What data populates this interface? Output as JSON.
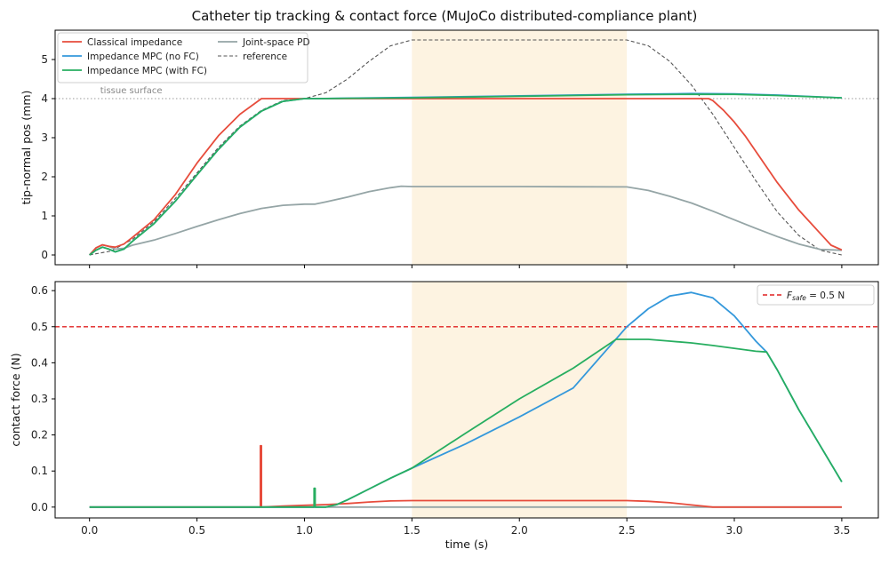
{
  "figure": {
    "title": "Catheter tip tracking & contact force (MuJoCo distributed-compliance plant)"
  },
  "colors": {
    "classical": "#e74c3c",
    "mpc_nofc": "#3498db",
    "mpc_fc": "#27ae60",
    "pd": "#95a5a6",
    "reference": "#555555",
    "fsafe": "#e02020",
    "shade": "#fdf3e1"
  },
  "chart_data": [
    {
      "type": "line",
      "id": "top",
      "ylabel": "tip-normal pos (mm)",
      "xlim": [
        -0.16,
        3.67
      ],
      "ylim": [
        -0.25,
        5.75
      ],
      "xticks": [
        0.0,
        0.5,
        1.0,
        1.5,
        2.0,
        2.5,
        3.0,
        3.5
      ],
      "xtick_labels_visible": false,
      "yticks": [
        0,
        1,
        2,
        3,
        4,
        5
      ],
      "shaded_x": [
        1.5,
        2.5
      ],
      "hline": {
        "y": 4.0,
        "label": "tissue surface",
        "label_x": 0.05
      },
      "legend": [
        "Classical impedance",
        "Impedance MPC (no FC)",
        "Impedance MPC (with FC)",
        "Joint-space PD",
        "reference"
      ],
      "series": [
        {
          "name": "reference",
          "color_key": "reference",
          "dashed": true,
          "width": 1.1,
          "x": [
            0,
            0.1,
            0.2,
            0.3,
            0.4,
            0.5,
            0.6,
            0.7,
            0.8,
            0.9,
            1.0,
            1.1,
            1.2,
            1.3,
            1.4,
            1.5,
            2.5,
            2.6,
            2.7,
            2.8,
            2.9,
            3.0,
            3.1,
            3.2,
            3.3,
            3.4,
            3.5
          ],
          "y": [
            0,
            0.1,
            0.4,
            0.85,
            1.45,
            2.1,
            2.75,
            3.3,
            3.7,
            3.95,
            4.0,
            4.15,
            4.5,
            4.95,
            5.35,
            5.5,
            5.5,
            5.35,
            4.95,
            4.35,
            3.6,
            2.75,
            1.9,
            1.1,
            0.5,
            0.12,
            0.0
          ]
        },
        {
          "name": "Joint-space PD",
          "color_key": "pd",
          "width": 1.8,
          "x": [
            0,
            0.03,
            0.06,
            0.09,
            0.12,
            0.16,
            0.2,
            0.3,
            0.4,
            0.5,
            0.6,
            0.7,
            0.8,
            0.9,
            1.0,
            1.05,
            1.1,
            1.2,
            1.3,
            1.4,
            1.45,
            1.5,
            2.0,
            2.5,
            2.6,
            2.7,
            2.8,
            2.9,
            3.0,
            3.1,
            3.2,
            3.3,
            3.4,
            3.5
          ],
          "y": [
            0,
            0.18,
            0.26,
            0.22,
            0.15,
            0.17,
            0.25,
            0.38,
            0.55,
            0.73,
            0.9,
            1.06,
            1.19,
            1.27,
            1.3,
            1.3,
            1.36,
            1.48,
            1.62,
            1.72,
            1.76,
            1.75,
            1.75,
            1.74,
            1.65,
            1.5,
            1.33,
            1.12,
            0.9,
            0.68,
            0.47,
            0.28,
            0.14,
            0.12
          ]
        },
        {
          "name": "Classical impedance",
          "color_key": "classical",
          "width": 1.8,
          "x": [
            0,
            0.03,
            0.06,
            0.09,
            0.12,
            0.16,
            0.2,
            0.3,
            0.4,
            0.5,
            0.6,
            0.7,
            0.8,
            0.9,
            1.0,
            2.5,
            2.8,
            2.88,
            2.9,
            2.95,
            3.0,
            3.05,
            3.1,
            3.2,
            3.3,
            3.4,
            3.45,
            3.5
          ],
          "y": [
            0,
            0.18,
            0.26,
            0.22,
            0.2,
            0.28,
            0.45,
            0.9,
            1.55,
            2.35,
            3.05,
            3.6,
            4.0,
            4.0,
            4.0,
            4.0,
            4.0,
            4.0,
            3.95,
            3.7,
            3.4,
            3.05,
            2.65,
            1.85,
            1.15,
            0.55,
            0.25,
            0.13
          ]
        },
        {
          "name": "Impedance MPC (no FC)",
          "color_key": "mpc_nofc",
          "width": 1.8,
          "x": [
            0,
            0.03,
            0.06,
            0.09,
            0.12,
            0.16,
            0.2,
            0.3,
            0.4,
            0.5,
            0.6,
            0.7,
            0.8,
            0.9,
            1.0,
            1.05,
            1.5,
            2.0,
            2.5,
            2.8,
            3.0,
            3.2,
            3.5
          ],
          "y": [
            0,
            0.12,
            0.2,
            0.15,
            0.08,
            0.15,
            0.35,
            0.8,
            1.38,
            2.05,
            2.7,
            3.27,
            3.68,
            3.93,
            4.0,
            4.0,
            4.03,
            4.07,
            4.11,
            4.13,
            4.12,
            4.09,
            4.02
          ]
        },
        {
          "name": "Impedance MPC (with FC)",
          "color_key": "mpc_fc",
          "width": 1.8,
          "x": [
            0,
            0.03,
            0.06,
            0.09,
            0.12,
            0.16,
            0.2,
            0.3,
            0.4,
            0.5,
            0.6,
            0.7,
            0.8,
            0.9,
            1.0,
            1.05,
            1.5,
            2.0,
            2.5,
            2.8,
            3.0,
            3.2,
            3.5
          ],
          "y": [
            0,
            0.12,
            0.2,
            0.15,
            0.08,
            0.15,
            0.35,
            0.8,
            1.38,
            2.05,
            2.7,
            3.27,
            3.68,
            3.93,
            4.0,
            4.0,
            4.02,
            4.06,
            4.1,
            4.11,
            4.11,
            4.08,
            4.02
          ]
        }
      ]
    },
    {
      "type": "line",
      "id": "bottom",
      "xlabel": "time (s)",
      "ylabel": "contact force (N)",
      "xlim": [
        -0.16,
        3.67
      ],
      "ylim": [
        -0.03,
        0.625
      ],
      "xticks": [
        0.0,
        0.5,
        1.0,
        1.5,
        2.0,
        2.5,
        3.0,
        3.5
      ],
      "xtick_labels": [
        "0.0",
        "0.5",
        "1.0",
        "1.5",
        "2.0",
        "2.5",
        "3.0",
        "3.5"
      ],
      "yticks": [
        0.0,
        0.1,
        0.2,
        0.3,
        0.4,
        0.5,
        0.6
      ],
      "ytick_labels": [
        "0.0",
        "0.1",
        "0.2",
        "0.3",
        "0.4",
        "0.5",
        "0.6"
      ],
      "shaded_x": [
        1.5,
        2.5
      ],
      "hline": {
        "y": 0.5
      },
      "legend": {
        "prefix": "F",
        "subscript": "safe",
        "suffix": " = 0.5 N"
      },
      "series": [
        {
          "name": "Joint-space PD",
          "color_key": "pd",
          "width": 1.8,
          "x": [
            0,
            3.5
          ],
          "y": [
            0.0,
            0.0
          ]
        },
        {
          "name": "Classical impedance",
          "color_key": "classical",
          "width": 1.8,
          "x": [
            0,
            0.795,
            0.795,
            0.8,
            0.8,
            0.9,
            1.0,
            1.1,
            1.2,
            1.3,
            1.4,
            1.5,
            2.0,
            2.5,
            2.6,
            2.7,
            2.8,
            2.9,
            3.5
          ],
          "y": [
            0,
            0,
            0.17,
            0.17,
            0.0,
            0.003,
            0.005,
            0.007,
            0.01,
            0.014,
            0.017,
            0.018,
            0.018,
            0.018,
            0.016,
            0.012,
            0.006,
            0.0,
            0.0
          ]
        },
        {
          "name": "Impedance MPC (no FC)",
          "color_key": "mpc_nofc",
          "width": 1.8,
          "x": [
            0,
            1.1,
            1.15,
            1.2,
            1.3,
            1.4,
            1.5,
            1.75,
            2.0,
            2.25,
            2.5,
            2.6,
            2.7,
            2.8,
            2.9,
            3.0,
            3.1,
            3.15,
            3.2,
            3.3,
            3.4,
            3.5
          ],
          "y": [
            0,
            0.0,
            0.007,
            0.02,
            0.05,
            0.08,
            0.108,
            0.175,
            0.25,
            0.33,
            0.5,
            0.55,
            0.585,
            0.595,
            0.58,
            0.53,
            0.46,
            0.43,
            0.38,
            0.27,
            0.17,
            0.07
          ]
        },
        {
          "name": "Impedance MPC (with FC)",
          "color_key": "mpc_fc",
          "width": 1.8,
          "x": [
            0,
            1.045,
            1.045,
            1.05,
            1.05,
            1.1,
            1.15,
            1.2,
            1.3,
            1.4,
            1.5,
            1.75,
            2.0,
            2.25,
            2.45,
            2.5,
            2.6,
            2.7,
            2.8,
            2.9,
            3.0,
            3.1,
            3.15,
            3.2,
            3.3,
            3.4,
            3.5
          ],
          "y": [
            0,
            0,
            0.052,
            0.052,
            0.0,
            0.0,
            0.007,
            0.02,
            0.05,
            0.08,
            0.108,
            0.205,
            0.3,
            0.385,
            0.465,
            0.465,
            0.465,
            0.46,
            0.455,
            0.448,
            0.44,
            0.432,
            0.43,
            0.38,
            0.27,
            0.17,
            0.07
          ]
        }
      ]
    }
  ]
}
